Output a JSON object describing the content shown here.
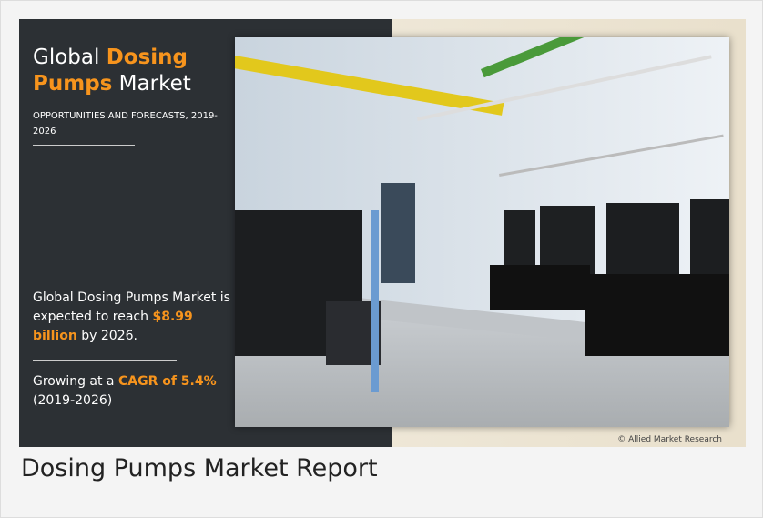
{
  "banner": {
    "headline": {
      "line1": [
        "Global ",
        "Dosing"
      ],
      "line2": [
        "Pumps",
        " Market"
      ]
    },
    "subheading": "OPPORTUNITIES AND FORECASTS, 2019-2026",
    "forecast": [
      "Global Dosing Pumps Market is expected to reach ",
      "$8.99 billion",
      " by 2026."
    ],
    "growth": [
      "Growing at a ",
      "CAGR of 5.4%",
      " (2019-2026)"
    ],
    "copyright": "© Allied Market Research"
  },
  "caption": "Dosing Pumps Market Report"
}
